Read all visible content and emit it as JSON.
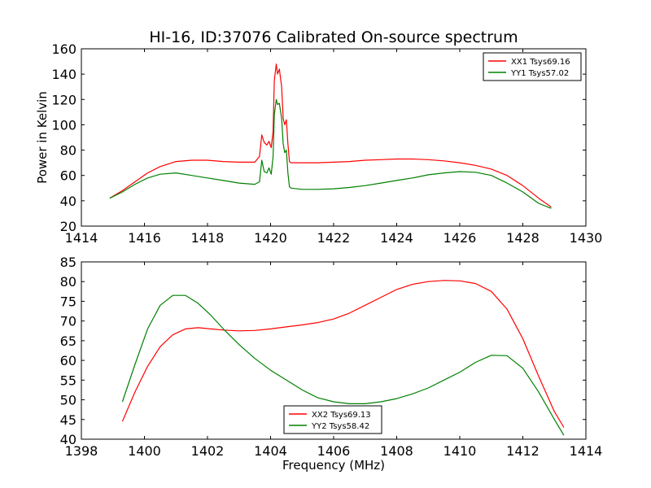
{
  "chart_data": [
    {
      "type": "line",
      "title": "HI-16, ID:37076 Calibrated On-source spectrum",
      "xlabel": "",
      "ylabel": "Power in Kelvin",
      "xlim": [
        1414,
        1430
      ],
      "ylim": [
        20,
        160
      ],
      "xticks": [
        1414,
        1416,
        1418,
        1420,
        1422,
        1424,
        1426,
        1428,
        1430
      ],
      "yticks": [
        20,
        40,
        60,
        80,
        100,
        120,
        140,
        160
      ],
      "grid": false,
      "legend_position": "top-right",
      "series": [
        {
          "name": "XX1 Tsys69.16",
          "color": "#ff0000",
          "x": [
            1414.9,
            1415.3,
            1415.7,
            1416.1,
            1416.5,
            1417.0,
            1417.5,
            1418.0,
            1418.5,
            1419.0,
            1419.5,
            1419.65,
            1419.72,
            1419.8,
            1419.88,
            1419.95,
            1420.02,
            1420.08,
            1420.12,
            1420.18,
            1420.22,
            1420.28,
            1420.35,
            1420.4,
            1420.45,
            1420.5,
            1420.55,
            1420.6,
            1420.65,
            1421.0,
            1421.5,
            1422.0,
            1422.5,
            1423.0,
            1423.5,
            1424.0,
            1424.5,
            1425.0,
            1425.5,
            1426.0,
            1426.5,
            1427.0,
            1427.5,
            1428.0,
            1428.5,
            1428.9
          ],
          "y": [
            42,
            48,
            55,
            62,
            67,
            71,
            72,
            72,
            71,
            70.5,
            70.5,
            75,
            92,
            86,
            84,
            87,
            82,
            95,
            135,
            148,
            140,
            144,
            130,
            105,
            100,
            104,
            85,
            71,
            70,
            70,
            70,
            70.5,
            71,
            72,
            72.5,
            73,
            73,
            72.5,
            71.5,
            70,
            68,
            65,
            60,
            52,
            42,
            35
          ]
        },
        {
          "name": "YY1 Tsys57.02",
          "color": "#008000",
          "x": [
            1414.9,
            1415.3,
            1415.7,
            1416.1,
            1416.5,
            1417.0,
            1417.5,
            1418.0,
            1418.5,
            1419.0,
            1419.5,
            1419.65,
            1419.72,
            1419.8,
            1419.88,
            1419.95,
            1420.02,
            1420.08,
            1420.12,
            1420.18,
            1420.22,
            1420.28,
            1420.35,
            1420.4,
            1420.45,
            1420.5,
            1420.55,
            1420.6,
            1420.65,
            1421.0,
            1421.5,
            1422.0,
            1422.5,
            1423.0,
            1423.5,
            1424.0,
            1424.5,
            1425.0,
            1425.5,
            1426.0,
            1426.5,
            1427.0,
            1427.5,
            1428.0,
            1428.5,
            1428.9
          ],
          "y": [
            42,
            47,
            53,
            58,
            61,
            62,
            60,
            58,
            56,
            54,
            53,
            55,
            72,
            63,
            62,
            66,
            61,
            75,
            108,
            120,
            116,
            117,
            105,
            85,
            78,
            80,
            62,
            51,
            50,
            49,
            49,
            49.5,
            50.5,
            52,
            54,
            56,
            58,
            60.5,
            62,
            63,
            62.5,
            60,
            54,
            47,
            38,
            34
          ]
        }
      ]
    },
    {
      "type": "line",
      "title": "",
      "xlabel": "Frequency (MHz)",
      "ylabel": "",
      "xlim": [
        1398,
        1414
      ],
      "ylim": [
        40,
        85
      ],
      "xticks": [
        1398,
        1400,
        1402,
        1404,
        1406,
        1408,
        1410,
        1412,
        1414
      ],
      "yticks": [
        40,
        45,
        50,
        55,
        60,
        65,
        70,
        75,
        80,
        85
      ],
      "grid": false,
      "legend_position": "bottom-center",
      "series": [
        {
          "name": "XX2 Tsys69.13",
          "color": "#ff0000",
          "x": [
            1399.3,
            1399.7,
            1400.1,
            1400.5,
            1400.9,
            1401.3,
            1401.7,
            1402.1,
            1402.5,
            1403.0,
            1403.5,
            1404.0,
            1404.5,
            1405.0,
            1405.5,
            1406.0,
            1406.5,
            1407.0,
            1407.5,
            1408.0,
            1408.5,
            1409.0,
            1409.5,
            1410.0,
            1410.5,
            1411.0,
            1411.5,
            1412.0,
            1412.5,
            1413.0,
            1413.3
          ],
          "y": [
            44.5,
            52,
            58.5,
            63.5,
            66.5,
            68,
            68.3,
            68,
            67.7,
            67.5,
            67.6,
            68,
            68.5,
            69,
            69.6,
            70.5,
            72,
            74,
            76,
            78,
            79.3,
            80,
            80.3,
            80.2,
            79.5,
            77.5,
            73,
            65.5,
            56,
            47,
            43
          ]
        },
        {
          "name": "YY2 Tsys58.42",
          "color": "#008000",
          "x": [
            1399.3,
            1399.7,
            1400.1,
            1400.5,
            1400.9,
            1401.3,
            1401.7,
            1402.1,
            1402.5,
            1403.0,
            1403.5,
            1404.0,
            1404.5,
            1405.0,
            1405.5,
            1406.0,
            1406.5,
            1407.0,
            1407.5,
            1408.0,
            1408.5,
            1409.0,
            1409.5,
            1410.0,
            1410.5,
            1411.0,
            1411.5,
            1412.0,
            1412.5,
            1413.0,
            1413.3
          ],
          "y": [
            49.5,
            59,
            68,
            74,
            76.5,
            76.5,
            74.5,
            71.5,
            68,
            64,
            60.5,
            57.5,
            55,
            52.5,
            50.5,
            49.5,
            49,
            49,
            49.5,
            50.3,
            51.5,
            53,
            55,
            57,
            59.5,
            61.3,
            61.2,
            58,
            52,
            45,
            41
          ]
        }
      ]
    }
  ]
}
